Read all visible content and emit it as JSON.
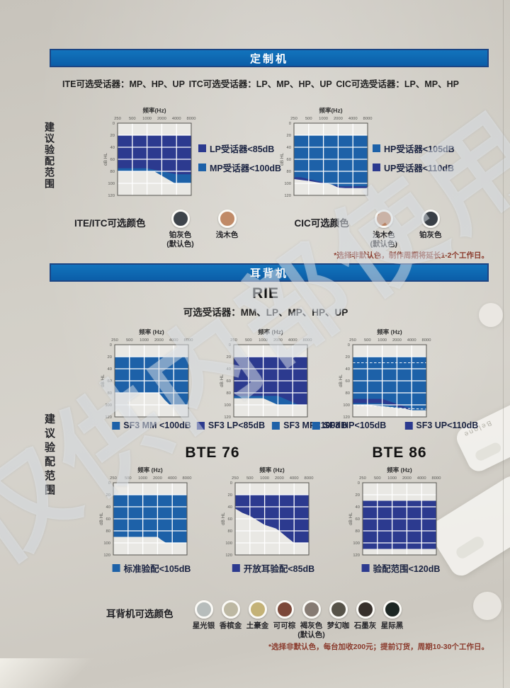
{
  "watermark": "仅供内部使用",
  "brand_faint": "Belone",
  "colors": {
    "banner_bg": "#0c66b0",
    "banner_border": "#1c4584",
    "blue": "#1d61a8",
    "navy": "#2c3a8f",
    "plot_bg": "#e9e8e4",
    "plot_border": "#55544f",
    "grid_line": "#ffffff",
    "note_text": "#8a3a2c"
  },
  "custom_section": {
    "banner": "定制机",
    "receivers": [
      "ITE可选受话器：MP、HP、UP",
      "ITC可选受话器：LP、MP、HP、UP",
      "CIC可选受话器：LP、MP、HP"
    ],
    "fitting_label": "建议验配范围",
    "color_groups": [
      {
        "group": "ITE/ITC可选颜色",
        "swatches": [
          {
            "name": "铂灰色",
            "sub": "(默认色)",
            "hex": "#3e444b"
          },
          {
            "name": "浅木色",
            "sub": "",
            "hex": "#c08a67"
          }
        ]
      },
      {
        "group": "CIC可选颜色",
        "swatches": [
          {
            "name": "浅木色",
            "sub": "(默认色)",
            "hex": "#bd8462"
          },
          {
            "name": "铂灰色",
            "sub": "",
            "hex": "#393f46"
          }
        ]
      }
    ],
    "note": "*选择非默认色，制作周期将延长1-2个工作日。"
  },
  "bte_section": {
    "banner": "耳背机",
    "rie_title": "RIE",
    "rie_subtitle": "可选受话器：MM、LP、MP、HP、UP",
    "fitting_label": "建议验配范围",
    "bte76_title": "BTE 76",
    "bte86_title": "BTE 86",
    "colors_label": "耳背机可选颜色",
    "color_swatches": [
      {
        "name": "星光银",
        "sub": "",
        "hex": "#b7bdbc"
      },
      {
        "name": "香槟金",
        "sub": "",
        "hex": "#bdb8a3"
      },
      {
        "name": "土豪金",
        "sub": "",
        "hex": "#c4b277"
      },
      {
        "name": "可可棕",
        "sub": "",
        "hex": "#7c4839"
      },
      {
        "name": "褐灰色",
        "sub": "(默认色)",
        "hex": "#867b73"
      },
      {
        "name": "梦幻咖",
        "sub": "",
        "hex": "#575349"
      },
      {
        "name": "石墨灰",
        "sub": "",
        "hex": "#37302b"
      },
      {
        "name": "星际黑",
        "sub": "",
        "hex": "#1d2724"
      }
    ],
    "note": "*选择非默认色，每台加收200元；提前订货，周期10-30个工作日。"
  },
  "chart_data": [
    {
      "type": "area",
      "name": "ITE/ITC fitting range",
      "xlabel": "频率(Hz)",
      "ylabel": "dB HL",
      "x_ticks": [
        250,
        500,
        1000,
        2000,
        4000,
        8000
      ],
      "y_ticks": [
        0,
        20,
        40,
        60,
        80,
        100,
        120
      ],
      "ylim": [
        0,
        120
      ],
      "legend_position": "right",
      "legend": [
        {
          "label": "LP受话器<85dB",
          "color": "navy"
        },
        {
          "label": "MP受话器<100dB",
          "color": "blue"
        }
      ],
      "regions": [
        {
          "kind": "band",
          "color": "blue",
          "top_db": 20,
          "bottom": [
            [
              250,
              80
            ],
            [
              1400,
              80
            ],
            [
              3700,
              100
            ],
            [
              8000,
              100
            ]
          ]
        },
        {
          "kind": "band",
          "color": "navy",
          "top_db": 20,
          "bottom": [
            [
              250,
              75
            ],
            [
              1000,
              75
            ],
            [
              4000,
              85
            ],
            [
              8000,
              85
            ]
          ]
        }
      ]
    },
    {
      "type": "area",
      "name": "CIC fitting range",
      "xlabel": "频率(Hz)",
      "ylabel": "dB HL",
      "x_ticks": [
        250,
        500,
        1000,
        2000,
        4000,
        8000
      ],
      "y_ticks": [
        0,
        20,
        40,
        60,
        80,
        100,
        120
      ],
      "ylim": [
        0,
        120
      ],
      "legend_position": "right",
      "legend": [
        {
          "label": "HP受话器<105dB",
          "color": "blue"
        },
        {
          "label": "UP受话器<110dB",
          "color": "navy"
        }
      ],
      "regions": [
        {
          "kind": "band",
          "color": "navy",
          "top_db": 20,
          "bottom": [
            [
              250,
              93
            ],
            [
              500,
              96
            ],
            [
              1000,
              100
            ],
            [
              1400,
              101
            ],
            [
              2000,
              107
            ],
            [
              2800,
              108
            ],
            [
              8000,
              108
            ]
          ]
        },
        {
          "kind": "band",
          "color": "blue",
          "top_db": 20,
          "bottom": [
            [
              250,
              90
            ],
            [
              350,
              90
            ],
            [
              2150,
              105
            ],
            [
              8000,
              105
            ]
          ]
        }
      ]
    },
    {
      "type": "area",
      "name": "RIE MM fitting range",
      "xlabel": "频率 (Hz)",
      "ylabel": "dB HL",
      "x_ticks": [
        250,
        500,
        1000,
        2000,
        4000,
        8000
      ],
      "y_ticks": [
        0,
        20,
        40,
        60,
        80,
        100,
        120
      ],
      "ylim": [
        0,
        120
      ],
      "legend_position": "bottom",
      "legend": [
        {
          "label": "SF3 MM <100dB",
          "color": "blue"
        }
      ],
      "regions": [
        {
          "kind": "band",
          "color": "blue",
          "top_db": 20,
          "bottom": [
            [
              250,
              80
            ],
            [
              2000,
              80
            ],
            [
              2650,
              92
            ],
            [
              3350,
              100
            ],
            [
              8000,
              100
            ]
          ]
        }
      ]
    },
    {
      "type": "area",
      "name": "RIE LP/MP fitting range",
      "xlabel": "频率 (Hz)",
      "ylabel": "dB HL",
      "x_ticks": [
        250,
        500,
        1000,
        2000,
        4000,
        8000
      ],
      "y_ticks": [
        0,
        20,
        40,
        60,
        80,
        100,
        120
      ],
      "ylim": [
        0,
        120
      ],
      "legend_position": "bottom",
      "legend": [
        {
          "label": "SF3 LP<85dB",
          "color": "navy"
        },
        {
          "label": "SF3 MP<100dB",
          "color": "blue"
        }
      ],
      "regions": [
        {
          "kind": "band",
          "color": "blue",
          "top_db": 20,
          "bottom": [
            [
              250,
              89
            ],
            [
              1000,
              89
            ],
            [
              2000,
              100
            ],
            [
              8000,
              100
            ]
          ]
        },
        {
          "kind": "band",
          "color": "navy",
          "top_db": 20,
          "bottom": [
            [
              250,
              85
            ],
            [
              2000,
              85
            ],
            [
              5300,
              100
            ],
            [
              8000,
              100
            ]
          ]
        }
      ]
    },
    {
      "type": "area",
      "name": "RIE HP/UP fitting range",
      "xlabel": "频率 (Hz)",
      "ylabel": "dB HL",
      "x_ticks": [
        250,
        500,
        1000,
        2000,
        4000,
        8000
      ],
      "y_ticks": [
        0,
        20,
        40,
        60,
        80,
        100,
        120
      ],
      "ylim": [
        0,
        120
      ],
      "legend_position": "bottom",
      "legend": [
        {
          "label": "SF3 HP<105dB",
          "color": "blue"
        },
        {
          "label": "SF3 UP<110dB",
          "color": "navy"
        }
      ],
      "regions": [
        {
          "kind": "band",
          "color": "blue",
          "top_db": 20,
          "bottom": [
            [
              250,
              100
            ],
            [
              500,
              100
            ],
            [
              1000,
              102
            ],
            [
              2000,
              105
            ],
            [
              2800,
              106
            ],
            [
              4000,
              109
            ],
            [
              8000,
              109
            ]
          ]
        },
        {
          "kind": "polygon",
          "color": "navy",
          "points": [
            [
              250,
              90
            ],
            [
              1000,
              90
            ],
            [
              3700,
              106
            ],
            [
              3700,
              108
            ],
            [
              1000,
              97
            ],
            [
              250,
              97
            ]
          ]
        },
        {
          "kind": "dash_h",
          "db": 30
        },
        {
          "kind": "dash_path",
          "points": [
            [
              250,
              101
            ],
            [
              1000,
              103
            ],
            [
              2800,
              106
            ],
            [
              8000,
              107
            ]
          ]
        }
      ]
    },
    {
      "type": "area",
      "name": "BTE76 standard fitting range",
      "xlabel": "频率 (Hz)",
      "ylabel": "dB HL",
      "x_ticks": [
        250,
        500,
        1000,
        2000,
        4000,
        8000
      ],
      "y_ticks": [
        0,
        20,
        40,
        60,
        80,
        100,
        120
      ],
      "ylim": [
        0,
        120
      ],
      "legend_position": "bottom",
      "legend": [
        {
          "label": "标准验配<105dB",
          "color": "blue"
        }
      ],
      "regions": [
        {
          "kind": "band",
          "color": "blue",
          "top_db": 20,
          "bottom": [
            [
              250,
              90
            ],
            [
              2000,
              90
            ],
            [
              2400,
              95
            ],
            [
              3000,
              100
            ],
            [
              8000,
              100
            ]
          ]
        }
      ]
    },
    {
      "type": "area",
      "name": "BTE76 open fitting range",
      "xlabel": "频率 (Hz)",
      "ylabel": "dB HL",
      "x_ticks": [
        250,
        500,
        1000,
        2000,
        4000,
        8000
      ],
      "y_ticks": [
        0,
        20,
        40,
        60,
        80,
        100,
        120
      ],
      "ylim": [
        0,
        120
      ],
      "legend_position": "bottom",
      "legend": [
        {
          "label": "开放耳验配<85dB",
          "color": "navy"
        }
      ],
      "regions": [
        {
          "kind": "band",
          "color": "navy",
          "top_db": 20,
          "bottom": [
            [
              250,
              43
            ],
            [
              350,
              50
            ],
            [
              500,
              55
            ],
            [
              1000,
              70
            ],
            [
              1700,
              76
            ],
            [
              2000,
              80
            ],
            [
              2800,
              90
            ],
            [
              4000,
              100
            ],
            [
              8000,
              100
            ]
          ]
        }
      ]
    },
    {
      "type": "area",
      "name": "BTE86 fitting range",
      "xlabel": "频率 (Hz)",
      "ylabel": "dB HL",
      "x_ticks": [
        250,
        500,
        1000,
        2000,
        4000,
        8000
      ],
      "y_ticks": [
        0,
        20,
        40,
        60,
        80,
        100,
        120
      ],
      "ylim": [
        0,
        120
      ],
      "legend_position": "bottom",
      "legend": [
        {
          "label": "验配范围<120dB",
          "color": "navy"
        }
      ],
      "regions": [
        {
          "kind": "band",
          "color": "navy",
          "top_db": 30,
          "bottom": [
            [
              250,
              110
            ],
            [
              8000,
              110
            ]
          ]
        }
      ]
    }
  ]
}
